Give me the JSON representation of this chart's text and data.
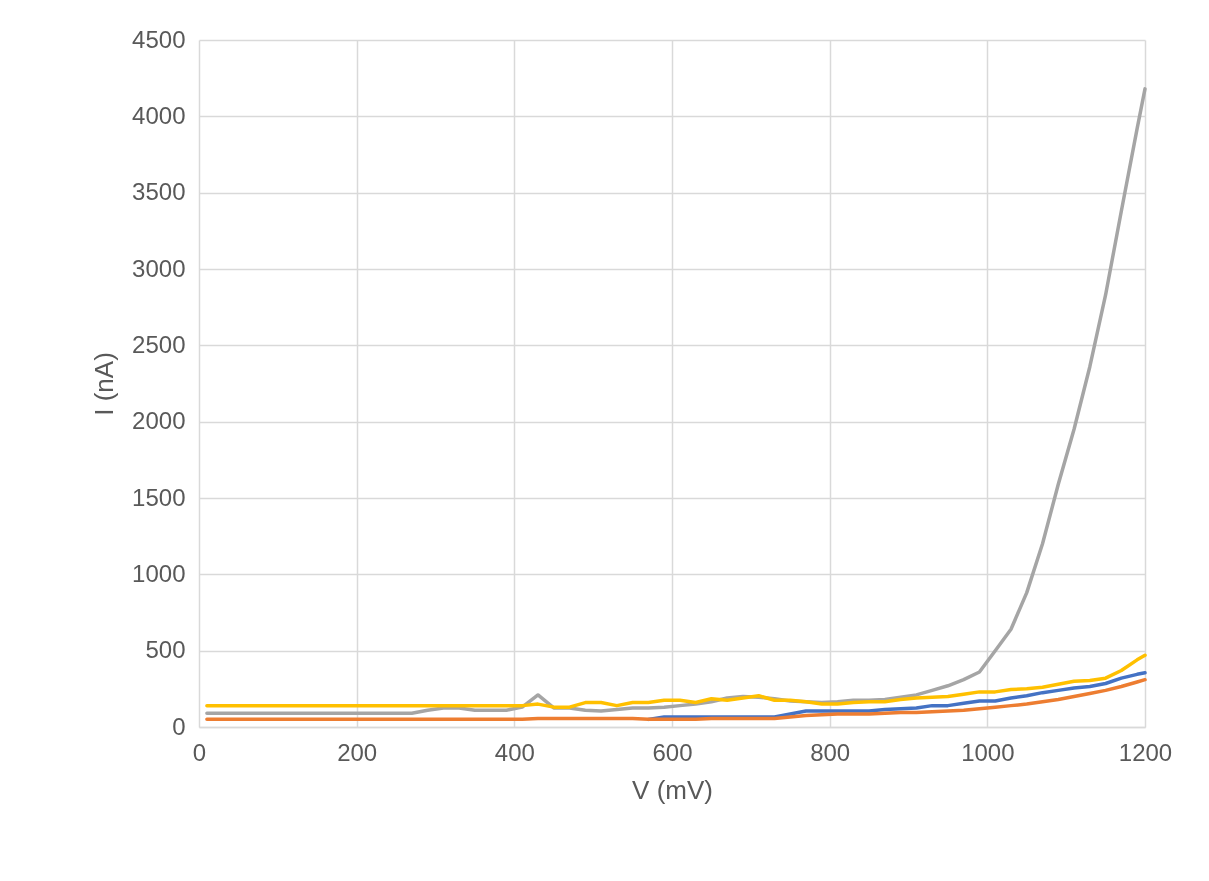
{
  "chart_data": {
    "type": "line",
    "xlabel": "V (mV)",
    "ylabel": "I (nA)",
    "x": [
      10,
      30,
      50,
      70,
      90,
      110,
      130,
      150,
      170,
      190,
      210,
      230,
      250,
      270,
      290,
      310,
      330,
      350,
      370,
      390,
      410,
      430,
      450,
      470,
      490,
      510,
      530,
      550,
      570,
      590,
      610,
      630,
      650,
      670,
      690,
      710,
      730,
      750,
      770,
      790,
      810,
      830,
      850,
      870,
      890,
      910,
      930,
      950,
      970,
      990,
      1010,
      1030,
      1050,
      1070,
      1090,
      1110,
      1130,
      1150,
      1170,
      1190,
      1200
    ],
    "series": [
      {
        "color": "#4472c4",
        "values": [
          null,
          null,
          null,
          null,
          null,
          null,
          null,
          null,
          null,
          null,
          null,
          null,
          null,
          null,
          null,
          null,
          null,
          null,
          null,
          null,
          null,
          null,
          null,
          null,
          null,
          null,
          null,
          null,
          50,
          65,
          65,
          65,
          65,
          65,
          65,
          65,
          65,
          85,
          105,
          105,
          105,
          105,
          105,
          115,
          120,
          125,
          140,
          140,
          155,
          170,
          170,
          190,
          205,
          225,
          240,
          255,
          265,
          285,
          320,
          345,
          355
        ]
      },
      {
        "color": "#ed7d31",
        "values": [
          50,
          50,
          50,
          50,
          50,
          50,
          50,
          50,
          50,
          50,
          50,
          50,
          50,
          50,
          50,
          50,
          50,
          50,
          50,
          50,
          50,
          55,
          55,
          55,
          55,
          55,
          55,
          55,
          50,
          50,
          50,
          50,
          55,
          55,
          55,
          55,
          55,
          65,
          75,
          80,
          85,
          85,
          85,
          90,
          95,
          95,
          100,
          105,
          110,
          120,
          130,
          140,
          150,
          165,
          180,
          200,
          220,
          240,
          265,
          295,
          310
        ]
      },
      {
        "color": "#a5a5a5",
        "values": [
          90,
          90,
          90,
          90,
          90,
          90,
          90,
          90,
          90,
          90,
          90,
          90,
          90,
          90,
          110,
          125,
          125,
          110,
          110,
          110,
          130,
          210,
          125,
          125,
          110,
          105,
          115,
          125,
          125,
          130,
          140,
          150,
          165,
          190,
          200,
          195,
          185,
          170,
          165,
          160,
          165,
          175,
          175,
          180,
          195,
          210,
          240,
          270,
          310,
          360,
          500,
          640,
          880,
          1200,
          1590,
          1950,
          2360,
          2830,
          3380,
          3920,
          4180
        ]
      },
      {
        "color": "#ffc000",
        "values": [
          140,
          140,
          140,
          140,
          140,
          140,
          140,
          140,
          140,
          140,
          140,
          140,
          140,
          140,
          140,
          140,
          140,
          140,
          140,
          140,
          140,
          150,
          130,
          130,
          160,
          160,
          140,
          160,
          160,
          175,
          175,
          160,
          185,
          175,
          190,
          205,
          175,
          175,
          165,
          150,
          150,
          160,
          165,
          165,
          180,
          190,
          195,
          200,
          215,
          230,
          230,
          245,
          250,
          260,
          280,
          300,
          305,
          320,
          370,
          440,
          470
        ]
      }
    ],
    "xlim": [
      0,
      1200
    ],
    "xticks": [
      0,
      200,
      400,
      600,
      800,
      1000,
      1200
    ],
    "ylim": [
      0,
      4500
    ],
    "yticks": [
      0,
      500,
      1000,
      1500,
      2000,
      2500,
      3000,
      3500,
      4000,
      4500
    ],
    "grid": true,
    "legend": false,
    "line_style": "solid",
    "marker": "none"
  }
}
